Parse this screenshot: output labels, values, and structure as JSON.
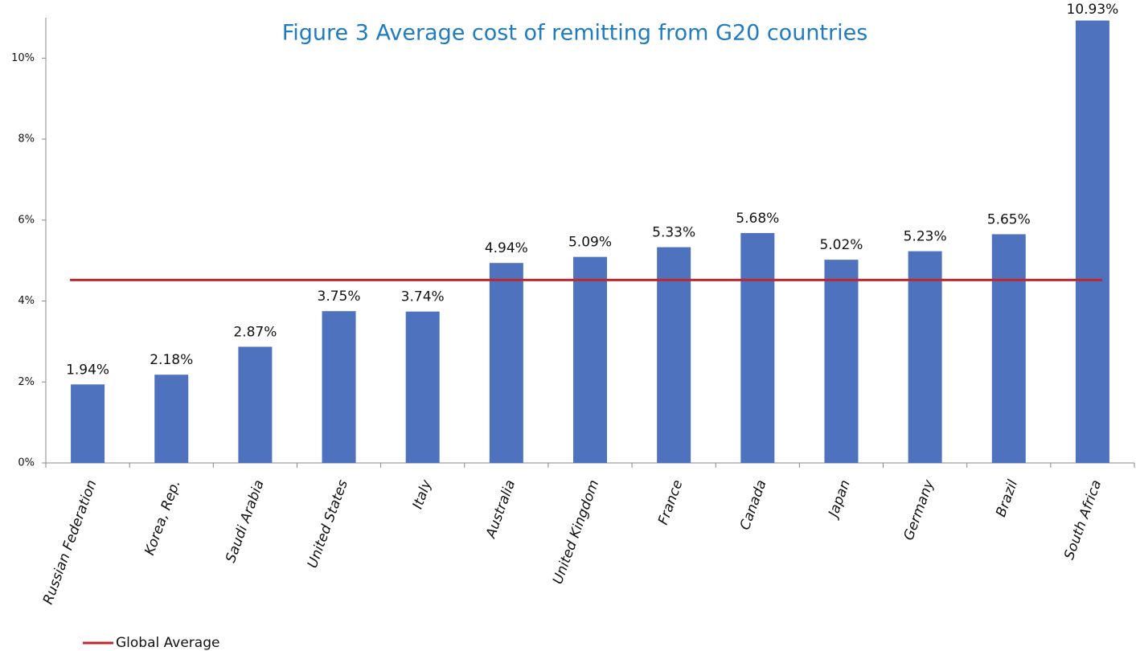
{
  "chart_data": {
    "type": "bar",
    "title": "Figure 3 Average cost of remitting from G20 countries",
    "categories": [
      "Russian Federation",
      "Korea, Rep.",
      "Saudi Arabia",
      "United States",
      "Italy",
      "Australia",
      "United Kingdom",
      "France",
      "Canada",
      "Japan",
      "Germany",
      "Brazil",
      "South Africa"
    ],
    "values": [
      1.94,
      2.18,
      2.87,
      3.75,
      3.74,
      4.94,
      5.09,
      5.33,
      5.68,
      5.02,
      5.23,
      5.65,
      10.93
    ],
    "value_labels": [
      "1.94%",
      "2.18%",
      "2.87%",
      "3.75%",
      "3.74%",
      "4.94%",
      "5.09%",
      "5.33%",
      "5.68%",
      "5.02%",
      "5.23%",
      "5.65%",
      "10.93%"
    ],
    "color": "#4f72be",
    "reference_line": {
      "name": "Global Average",
      "value": 4.52,
      "color": "#c0282d"
    },
    "ylim": [
      0,
      11
    ],
    "yticks": [
      {
        "value": 0,
        "label": "0%"
      },
      {
        "value": 2,
        "label": "2%"
      },
      {
        "value": 4,
        "label": "4%"
      },
      {
        "value": 6,
        "label": "6%"
      },
      {
        "value": 8,
        "label": "8%"
      },
      {
        "value": 10,
        "label": "10%"
      }
    ],
    "grid": false,
    "legend": "bottom-left"
  }
}
